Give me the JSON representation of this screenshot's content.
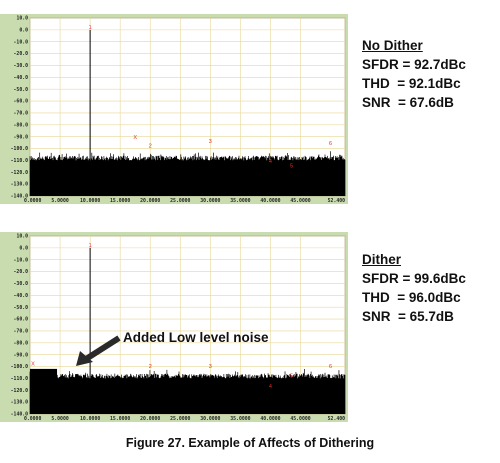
{
  "chart_data": [
    {
      "type": "line",
      "title": "",
      "xlabel": "",
      "ylabel": "",
      "xlim": [
        0,
        52.4
      ],
      "ylim": [
        -140,
        10
      ],
      "grid": true,
      "y_ticks": [
        "10.0",
        "0.0",
        "-10.0",
        "-20.0",
        "-30.0",
        "-40.0",
        "-50.0",
        "-60.0",
        "-70.0",
        "-80.0",
        "-90.0",
        "-100.0",
        "-110.0",
        "-120.0",
        "-130.0",
        "-140.0"
      ],
      "x_ticks": [
        "0.0000",
        "5.0000",
        "10.0000",
        "15.0000",
        "20.0000",
        "25.0000",
        "30.0000",
        "35.0000",
        "40.0000",
        "45.0000",
        "52.400"
      ],
      "series": [
        {
          "fundamental": {
            "x": 10.0,
            "y": 0.0
          },
          "noise_floor": [
            -115,
            -106
          ],
          "harmonics": [
            {
              "label": "1",
              "x": 10.0,
              "y": 0.0
            },
            {
              "label": "X",
              "x": 17.5,
              "y": -93.0
            },
            {
              "label": "2",
              "x": 20.0,
              "y": -100.0
            },
            {
              "label": "3",
              "x": 30.0,
              "y": -96.0
            },
            {
              "label": "4",
              "x": 40.0,
              "y": -113.0
            },
            {
              "label": "5",
              "x": 43.5,
              "y": -117.0
            },
            {
              "label": "6",
              "x": 50.0,
              "y": -98.0
            }
          ]
        }
      ]
    },
    {
      "type": "line",
      "title": "",
      "xlabel": "",
      "ylabel": "",
      "xlim": [
        0,
        52.4
      ],
      "ylim": [
        -140,
        10
      ],
      "grid": true,
      "y_ticks": [
        "10.0",
        "0.0",
        "-10.0",
        "-20.0",
        "-30.0",
        "-40.0",
        "-50.0",
        "-60.0",
        "-70.0",
        "-80.0",
        "-90.0",
        "-100.0",
        "-110.0",
        "-120.0",
        "-130.0",
        "-140.0"
      ],
      "x_ticks": [
        "0.0000",
        "5.0000",
        "10.0000",
        "15.0000",
        "20.0000",
        "25.0000",
        "30.0000",
        "35.0000",
        "40.0000",
        "45.0000",
        "52.400"
      ],
      "series": [
        {
          "fundamental": {
            "x": 10.0,
            "y": 0.0
          },
          "noise_floor": [
            -115,
            -106
          ],
          "added_noise_band": {
            "x_from": 0.0,
            "x_to": 4.5,
            "y": -102.0
          },
          "harmonics": [
            {
              "label": "1",
              "x": 10.0,
              "y": 0.0
            },
            {
              "label": "X",
              "x": 0.0,
              "y": -100.0
            },
            {
              "label": "2",
              "x": 20.0,
              "y": -102.0
            },
            {
              "label": "3",
              "x": 30.0,
              "y": -102.0
            },
            {
              "label": "4",
              "x": 40.0,
              "y": -119.0
            },
            {
              "label": "5",
              "x": 43.5,
              "y": -110.0
            },
            {
              "label": "6",
              "x": 50.0,
              "y": -102.0
            }
          ]
        }
      ]
    }
  ],
  "info_top": {
    "heading": "No Dither",
    "sfdr": "SFDR = 92.7dBc",
    "thd": "THD  = 92.1dBc",
    "snr": "SNR  = 67.6dB"
  },
  "info_bottom": {
    "heading": "Dither",
    "sfdr": "SFDR = 99.6dBc",
    "thd": "THD  = 96.0dBc",
    "snr": "SNR  = 65.7dB"
  },
  "annotation": "Added Low level noise",
  "caption": "Figure 27. Example of Affects of Dithering",
  "colors": {
    "panel_bg": "#c8dcb0",
    "plot_bg": "#ffffff",
    "grid": "#e8d898",
    "trace": "#000000",
    "marker": "#e03020"
  }
}
